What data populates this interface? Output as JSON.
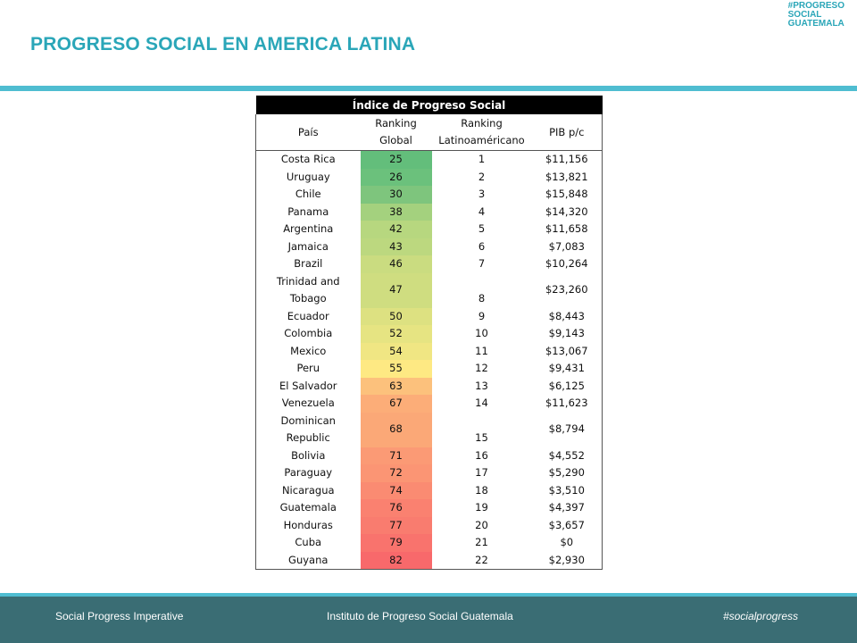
{
  "slide": {
    "title": "PROGRESO SOCIAL EN AMERICA LATINA",
    "logo": [
      "#PROGRESO",
      "SOCIAL",
      "GUATEMALA"
    ]
  },
  "table": {
    "banner": "Índice de Progreso Social",
    "headers": {
      "country": "País",
      "global_line1": "Ranking",
      "global_line2": "Global",
      "latam_line1": "Ranking",
      "latam_line2": "Latinoaméricano",
      "pib": "PIB p/c"
    },
    "rows": [
      {
        "country_line1": "Costa Rica",
        "country_line2": "",
        "global": "25",
        "latam": "1",
        "pib": "$11,156",
        "color": "#63be7b"
      },
      {
        "country_line1": "Uruguay",
        "country_line2": "",
        "global": "26",
        "latam": "2",
        "pib": "$13,821",
        "color": "#6bc17c"
      },
      {
        "country_line1": "Chile",
        "country_line2": "",
        "global": "30",
        "latam": "3",
        "pib": "$15,848",
        "color": "#7ec57d"
      },
      {
        "country_line1": "Panama",
        "country_line2": "",
        "global": "38",
        "latam": "4",
        "pib": "$14,320",
        "color": "#a4d17e"
      },
      {
        "country_line1": "Argentina",
        "country_line2": "",
        "global": "42",
        "latam": "5",
        "pib": "$11,658",
        "color": "#b7d77f"
      },
      {
        "country_line1": "Jamaica",
        "country_line2": "",
        "global": "43",
        "latam": "6",
        "pib": "$7,083",
        "color": "#bcd87f"
      },
      {
        "country_line1": "Brazil",
        "country_line2": "",
        "global": "46",
        "latam": "7",
        "pib": "$10,264",
        "color": "#cadc80"
      },
      {
        "country_line1": "Trinidad and",
        "country_line2": "Tobago",
        "global": "47",
        "latam": "8",
        "pib": "$23,260",
        "color": "#cfdd80",
        "tall": true
      },
      {
        "country_line1": "Ecuador",
        "country_line2": "",
        "global": "50",
        "latam": "9",
        "pib": "$8,443",
        "color": "#dde181"
      },
      {
        "country_line1": "Colombia",
        "country_line2": "",
        "global": "52",
        "latam": "10",
        "pib": "$9,143",
        "color": "#e6e482"
      },
      {
        "country_line1": "Mexico",
        "country_line2": "",
        "global": "54",
        "latam": "11",
        "pib": "$13,067",
        "color": "#f0e683"
      },
      {
        "country_line1": "Peru",
        "country_line2": "",
        "global": "55",
        "latam": "12",
        "pib": "$9,431",
        "color": "#fee983"
      },
      {
        "country_line1": "El Salvador",
        "country_line2": "",
        "global": "63",
        "latam": "13",
        "pib": "$6,125",
        "color": "#fcc17c"
      },
      {
        "country_line1": "Venezuela",
        "country_line2": "",
        "global": "67",
        "latam": "14",
        "pib": "$11,623",
        "color": "#fcad78"
      },
      {
        "country_line1": "Dominican",
        "country_line2": "Republic",
        "global": "68",
        "latam": "15",
        "pib": "$8,794",
        "color": "#fba877",
        "tall": true
      },
      {
        "country_line1": "Bolivia",
        "country_line2": "",
        "global": "71",
        "latam": "16",
        "pib": "$4,552",
        "color": "#fb9a75"
      },
      {
        "country_line1": "Paraguay",
        "country_line2": "",
        "global": "72",
        "latam": "17",
        "pib": "$5,290",
        "color": "#fb9574"
      },
      {
        "country_line1": "Nicaragua",
        "country_line2": "",
        "global": "74",
        "latam": "18",
        "pib": "$3,510",
        "color": "#fa8b72"
      },
      {
        "country_line1": "Guatemala",
        "country_line2": "",
        "global": "76",
        "latam": "19",
        "pib": "$4,397",
        "color": "#fa8170"
      },
      {
        "country_line1": "Honduras",
        "country_line2": "",
        "global": "77",
        "latam": "20",
        "pib": "$3,657",
        "color": "#f97c6f"
      },
      {
        "country_line1": "Cuba",
        "country_line2": "",
        "global": "79",
        "latam": "21",
        "pib": "$0",
        "color": "#f9736d"
      },
      {
        "country_line1": "Guyana",
        "country_line2": "",
        "global": "82",
        "latam": "22",
        "pib": "$2,930",
        "color": "#f8696b"
      }
    ]
  },
  "footer": {
    "left": "Social Progress Imperative",
    "center": "Instituto de Progreso Social Guatemala",
    "right": "#socialprogress"
  }
}
